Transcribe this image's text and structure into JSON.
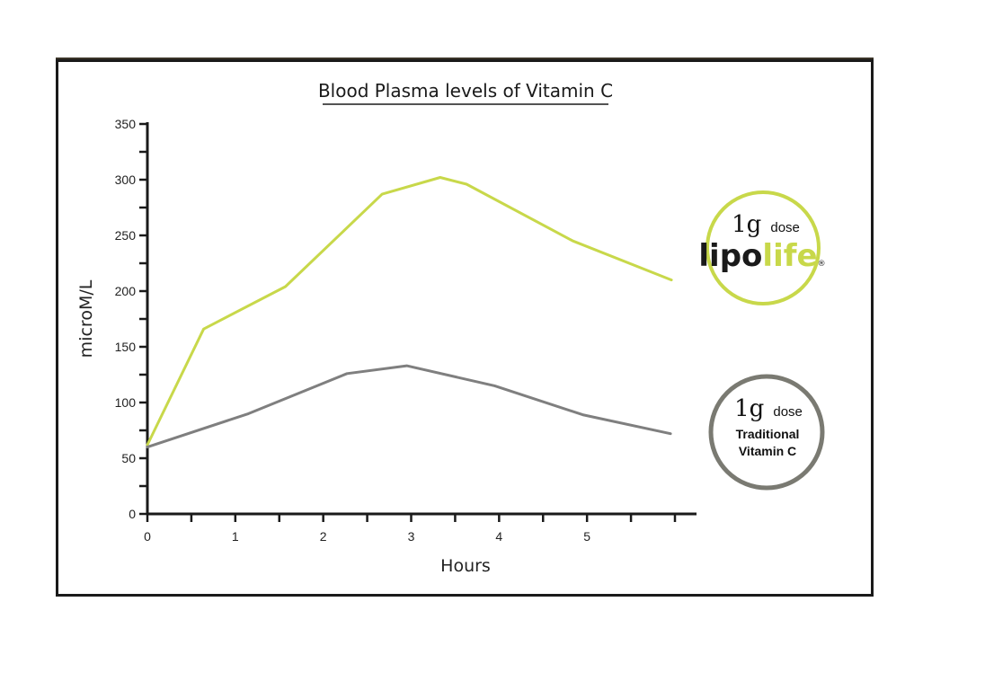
{
  "chart_data": {
    "type": "line",
    "title": "Blood Plasma levels of Vitamin C",
    "xlabel": "Hours",
    "ylabel": "microM/L",
    "xlim": [
      0,
      6
    ],
    "ylim": [
      0,
      350
    ],
    "x_tick_labels": [
      "0",
      "1",
      "2",
      "3",
      "4",
      "5"
    ],
    "x_ticks": [
      0,
      1,
      2,
      3,
      4,
      5
    ],
    "x_minor_ticks": [
      0.5,
      1.5,
      2.5,
      3.5,
      4.5,
      5.5,
      6
    ],
    "y_ticks": [
      0,
      50,
      100,
      150,
      200,
      250,
      300,
      350
    ],
    "y_tick_labels": [
      "0",
      "50",
      "100",
      "150",
      "200",
      "250",
      "300",
      "350"
    ],
    "grid": false,
    "series": [
      {
        "color": "#c8d84a",
        "x": [
          0,
          0.64,
          1.57,
          2.67,
          3.33,
          3.63,
          4.84,
          5.96
        ],
        "y": [
          62,
          166,
          204,
          287,
          302,
          296,
          245,
          210
        ]
      },
      {
        "color": "#7f7f7f",
        "x": [
          0,
          1.15,
          2.27,
          2.95,
          3.95,
          4.95,
          5.95
        ],
        "y": [
          60,
          90,
          126,
          133,
          115,
          89,
          72
        ]
      }
    ]
  },
  "badges": {
    "lipo": {
      "dose_num": "1g",
      "dose_word": "dose",
      "brand_a": "lipo",
      "brand_b": "life",
      "reg": "®",
      "ring_color": "#c8d84a"
    },
    "traditional": {
      "dose_num": "1g",
      "dose_word": "dose",
      "line1": "Traditional",
      "line2": "Vitamin C",
      "ring_color": "#7a7a72"
    }
  },
  "colors": {
    "axis": "#1a1a1a",
    "brand_dark": "#1a1a1a",
    "brand_green": "#c8d84a"
  }
}
